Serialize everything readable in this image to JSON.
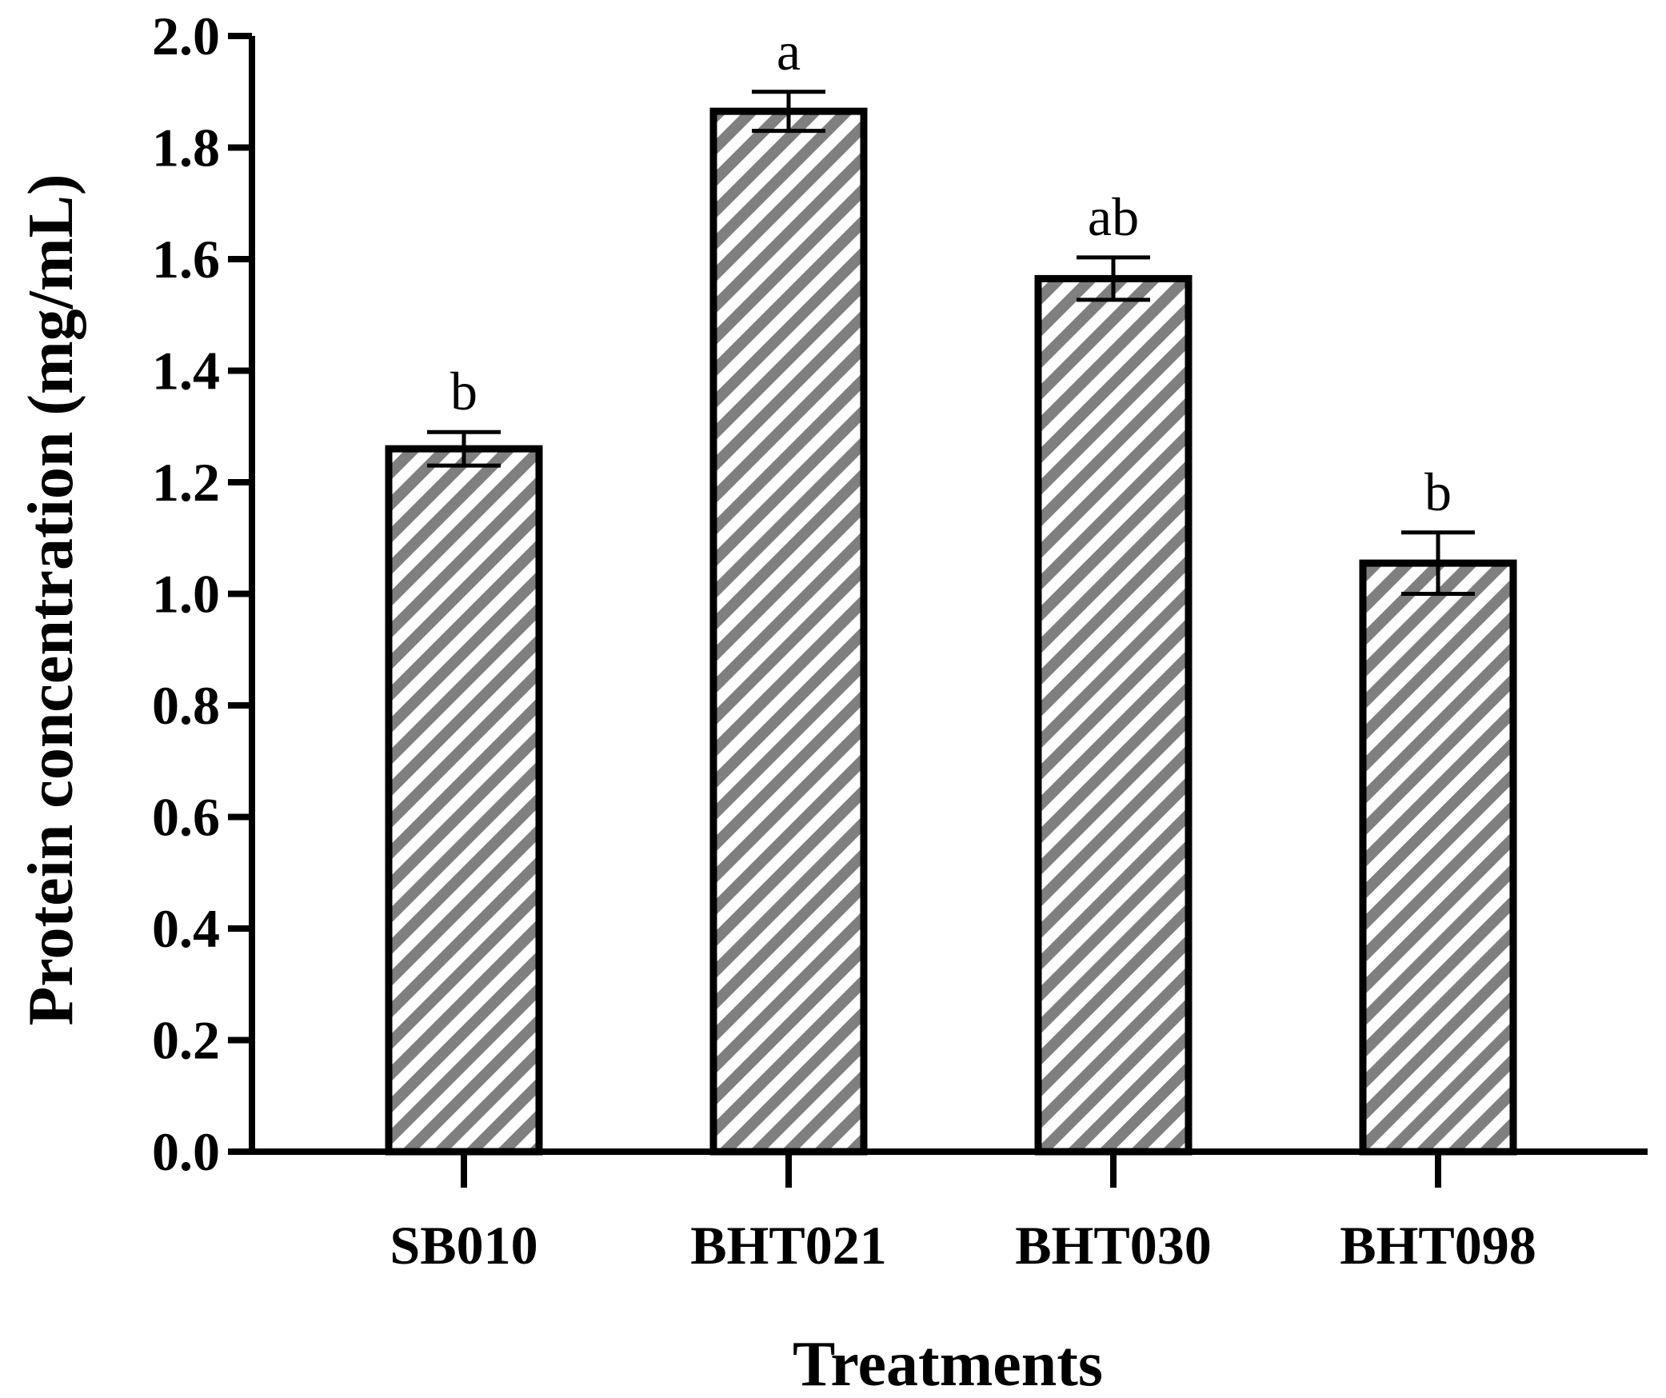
{
  "chart_data": {
    "type": "bar",
    "title": "",
    "xlabel": "Treatments",
    "ylabel": "Protein concentration (mg/mL)",
    "ylim": [
      0,
      2.0
    ],
    "yticks": [
      0.0,
      0.2,
      0.4,
      0.6,
      0.8,
      1.0,
      1.2,
      1.4,
      1.6,
      1.8,
      2.0
    ],
    "ytick_labels": [
      "0.0",
      "0.2",
      "0.4",
      "0.6",
      "0.8",
      "1.0",
      "1.2",
      "1.4",
      "1.6",
      "1.8",
      "2.0"
    ],
    "categories": [
      "SB010",
      "BHT021",
      "BHT030",
      "BHT098"
    ],
    "values": [
      1.26,
      1.865,
      1.565,
      1.055
    ],
    "errors": [
      0.03,
      0.035,
      0.038,
      0.055
    ],
    "significance_letters": [
      "b",
      "a",
      "ab",
      "b"
    ],
    "grid": false,
    "bar_fill": "diagonal-hatch",
    "hatch_color": "#7f7f7f",
    "bar_edge_color": "#000000"
  }
}
